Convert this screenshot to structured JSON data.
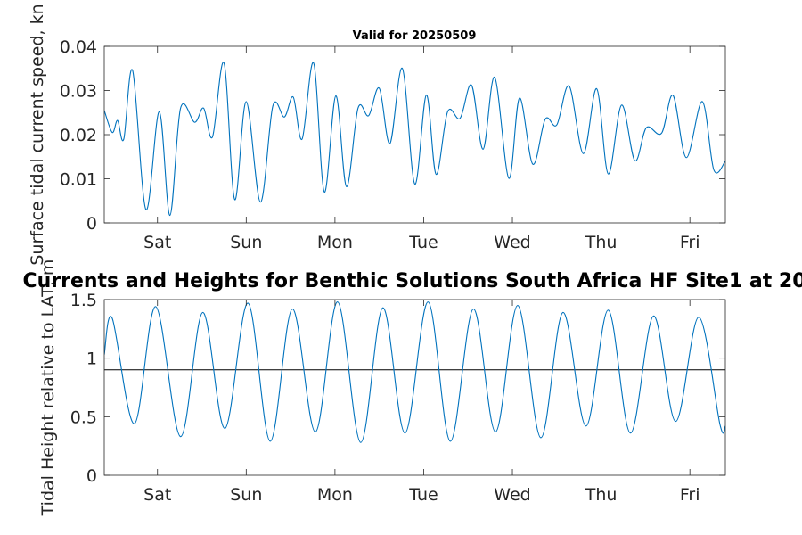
{
  "colors": {
    "series": "#0072bd",
    "axis": "#262626",
    "reference_line": "#000000",
    "background": "#ffffff"
  },
  "chart_data": [
    {
      "type": "line",
      "title": "Valid for 20250509",
      "ylabel": "Surface tidal current speed, kn",
      "xlabel": "",
      "xlim": [
        0,
        7
      ],
      "ylim": [
        0,
        0.04
      ],
      "yticks": [
        0,
        0.01,
        0.02,
        0.03,
        0.04
      ],
      "ytick_labels": [
        "0",
        "0.01",
        "0.02",
        "0.03",
        "0.04"
      ],
      "xticks": [
        0.6,
        1.6,
        2.6,
        3.6,
        4.6,
        5.6,
        6.6
      ],
      "xtick_labels": [
        "Sat",
        "Sun",
        "Mon",
        "Tue",
        "Wed",
        "Thu",
        "Fri"
      ],
      "grid": false,
      "series": [
        {
          "x": [
            0,
            0.09,
            0.15,
            0.22,
            0.32,
            0.47,
            0.62,
            0.74,
            0.86,
            1.02,
            1.12,
            1.22,
            1.35,
            1.47,
            1.6,
            1.76,
            1.9,
            2.03,
            2.13,
            2.23,
            2.36,
            2.48,
            2.61,
            2.73,
            2.86,
            2.98,
            3.1,
            3.22,
            3.36,
            3.5,
            3.63,
            3.74,
            3.87,
            4.01,
            4.14,
            4.27,
            4.4,
            4.56,
            4.68,
            4.83,
            4.97,
            5.1,
            5.24,
            5.4,
            5.55,
            5.68,
            5.83,
            5.98,
            6.11,
            6.28,
            6.41,
            6.56,
            6.74,
            6.87,
            7.0
          ],
          "values": [
            0.0255,
            0.0205,
            0.0232,
            0.019,
            0.0345,
            0.003,
            0.0252,
            0.0017,
            0.026,
            0.0228,
            0.026,
            0.0195,
            0.0362,
            0.0053,
            0.0275,
            0.0047,
            0.0265,
            0.024,
            0.0285,
            0.019,
            0.0362,
            0.007,
            0.0288,
            0.0082,
            0.026,
            0.0243,
            0.0305,
            0.018,
            0.035,
            0.0088,
            0.029,
            0.011,
            0.0252,
            0.0237,
            0.0312,
            0.0167,
            0.033,
            0.0101,
            0.0283,
            0.0133,
            0.0235,
            0.0222,
            0.031,
            0.0157,
            0.0304,
            0.0111,
            0.0267,
            0.0141,
            0.0216,
            0.0203,
            0.0289,
            0.0148,
            0.0275,
            0.012,
            0.014
          ]
        }
      ]
    },
    {
      "type": "line",
      "title": "Currents and Heights for Benthic Solutions South Africa HF Site1 at 20",
      "ylabel": "Tidal Height relative to LAT, m",
      "xlabel": "",
      "xlim": [
        0,
        7
      ],
      "ylim": [
        0,
        1.5
      ],
      "yticks": [
        0,
        0.5,
        1,
        1.5
      ],
      "ytick_labels": [
        "0",
        "0.5",
        "1",
        "1.5"
      ],
      "xticks": [
        0.6,
        1.6,
        2.6,
        3.6,
        4.6,
        5.6,
        6.6
      ],
      "xtick_labels": [
        "Sat",
        "Sun",
        "Mon",
        "Tue",
        "Wed",
        "Thu",
        "Fri"
      ],
      "grid": false,
      "reference_line_y": 0.9,
      "series": [
        {
          "x": [
            0,
            0.09,
            0.34,
            0.58,
            0.86,
            1.11,
            1.36,
            1.62,
            1.87,
            2.12,
            2.38,
            2.63,
            2.89,
            3.14,
            3.39,
            3.65,
            3.9,
            4.16,
            4.41,
            4.66,
            4.92,
            5.17,
            5.43,
            5.68,
            5.93,
            6.19,
            6.44,
            6.7,
            6.94,
            7.0
          ],
          "values": [
            1.03,
            1.34,
            0.44,
            1.44,
            0.33,
            1.39,
            0.4,
            1.47,
            0.29,
            1.42,
            0.37,
            1.48,
            0.28,
            1.43,
            0.36,
            1.48,
            0.29,
            1.42,
            0.37,
            1.45,
            0.32,
            1.39,
            0.42,
            1.41,
            0.36,
            1.36,
            0.46,
            1.35,
            0.43,
            0.42
          ]
        }
      ]
    }
  ]
}
